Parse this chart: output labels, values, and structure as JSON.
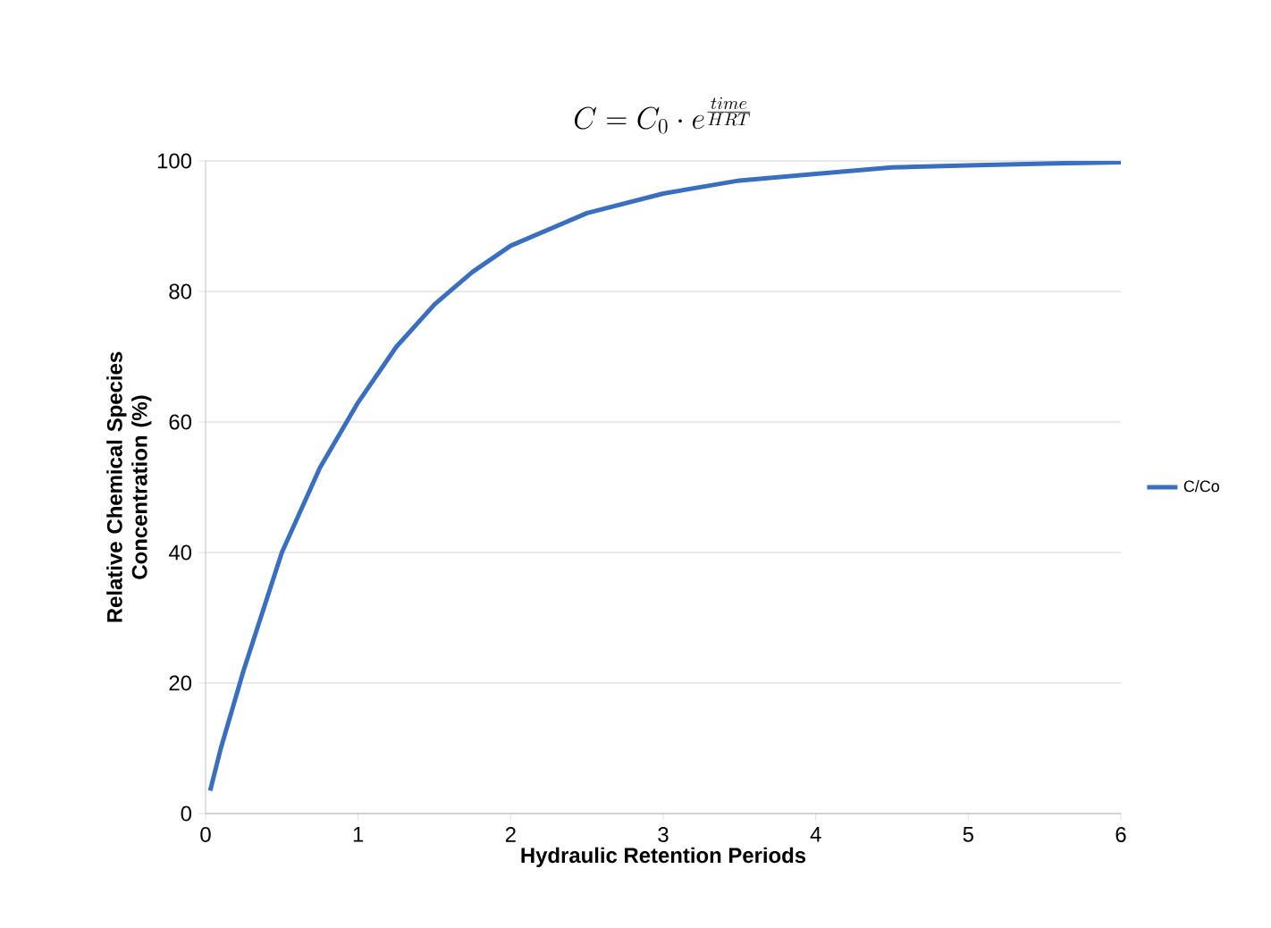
{
  "chart_data": {
    "type": "line",
    "title": "C = C_0 \\cdot e^{\\frac{time}{HRT}}",
    "xlabel": "Hydraulic Retention Periods",
    "ylabel": "Relative Chemical Species Concentration (%)",
    "x": [
      0.03,
      0.1,
      0.25,
      0.5,
      0.75,
      1,
      1.25,
      1.5,
      1.75,
      2,
      2.5,
      3,
      3.5,
      4,
      4.5,
      5,
      5.5,
      6
    ],
    "series": [
      {
        "name": "C/Co",
        "color": "#3a6fbf",
        "values": [
          3.5,
          10,
          22,
          40,
          53,
          63,
          71.5,
          78,
          83,
          87,
          92,
          95,
          97,
          98,
          99,
          99.3,
          99.6,
          99.8
        ]
      }
    ],
    "xlim": [
      0,
      6
    ],
    "ylim": [
      0,
      100
    ],
    "xticks": [
      0,
      1,
      2,
      3,
      4,
      5,
      6
    ],
    "yticks": [
      0,
      20,
      40,
      60,
      80,
      100
    ],
    "grid": "y",
    "legend": "right",
    "line_style": "solid",
    "marker": "none"
  }
}
